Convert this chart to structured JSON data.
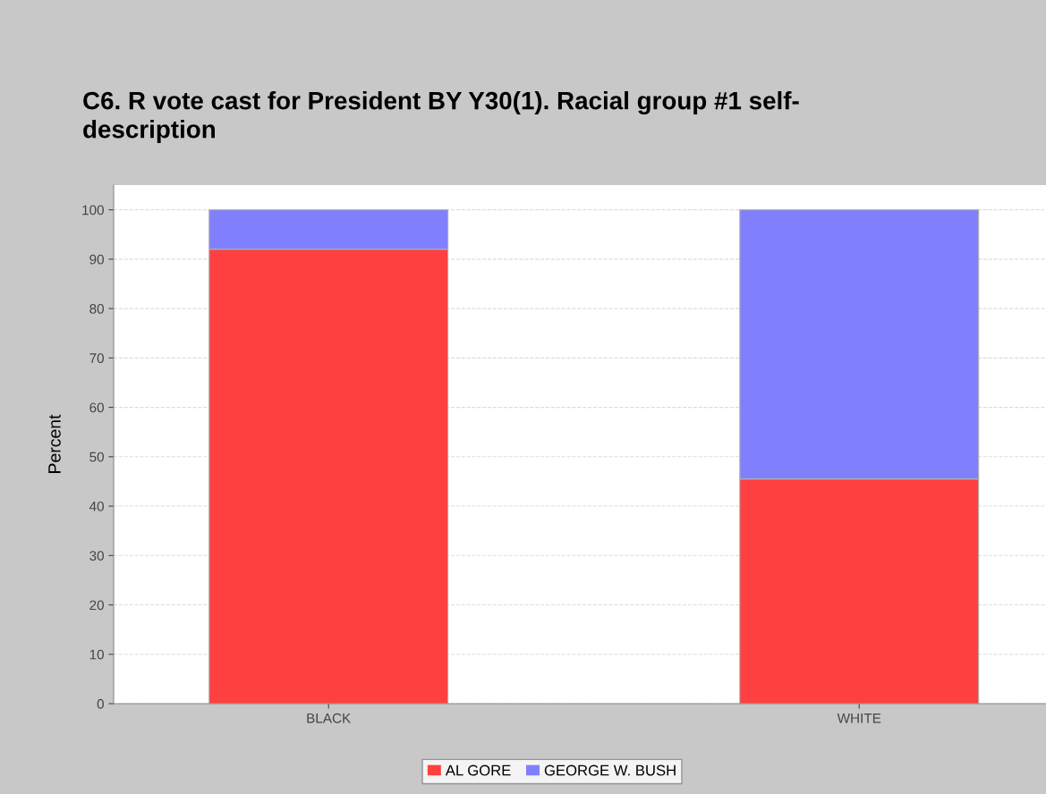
{
  "chart_data": {
    "type": "bar",
    "title": "C6. R vote cast for President BY Y30(1). Racial group #1 self-\ndescription",
    "ylabel": "Percent",
    "categories": [
      "BLACK",
      "WHITE"
    ],
    "stacked": true,
    "series": [
      {
        "name": "AL GORE",
        "color": "#ff4040",
        "values": [
          92,
          45.5
        ]
      },
      {
        "name": "GEORGE W. BUSH",
        "color": "#8080ff",
        "values": [
          8,
          54.5
        ]
      }
    ],
    "ylim": [
      0,
      105
    ],
    "yticks": [
      0,
      10,
      20,
      30,
      40,
      50,
      60,
      70,
      80,
      90,
      100
    ],
    "grid": "y",
    "legend": "bottom"
  }
}
